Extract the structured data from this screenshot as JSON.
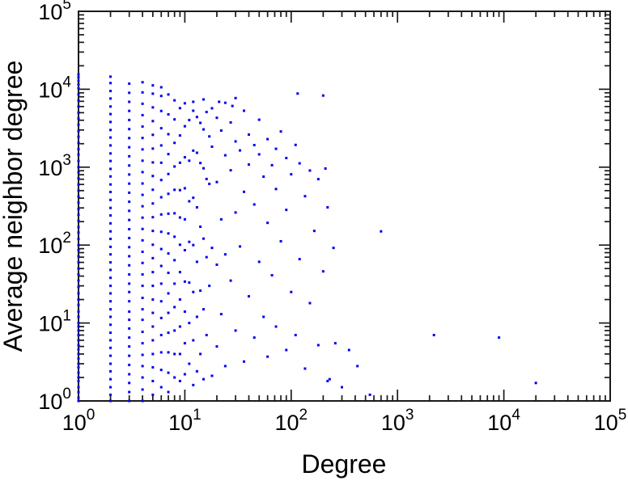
{
  "figure": {
    "background": "#ffffff"
  },
  "chart_data": {
    "type": "scatter",
    "title": "",
    "xlabel": "Degree",
    "ylabel": "Average neighbor degree",
    "x_scale": "log",
    "y_scale": "log",
    "xlim": [
      1,
      100000
    ],
    "ylim": [
      1,
      100000
    ],
    "x_tick_exponents": [
      0,
      1,
      2,
      3,
      4,
      5
    ],
    "y_tick_exponents": [
      0,
      1,
      2,
      3,
      4,
      5
    ],
    "tick_label_base": "10",
    "grid": false,
    "legend": null,
    "marker": "square",
    "marker_size": 3,
    "point_color": "#0000ee",
    "axis_color": "#1a1a1a",
    "points": [
      [
        1,
        1
      ],
      [
        1,
        1.1
      ],
      [
        1,
        1.3
      ],
      [
        1,
        1.5
      ],
      [
        1,
        1.8
      ],
      [
        1,
        2
      ],
      [
        1,
        2.3
      ],
      [
        1,
        2.7
      ],
      [
        1,
        3
      ],
      [
        1,
        3.5
      ],
      [
        1,
        4
      ],
      [
        1,
        4.6
      ],
      [
        1,
        5.2
      ],
      [
        1,
        6
      ],
      [
        1,
        7
      ],
      [
        1,
        8
      ],
      [
        1,
        9
      ],
      [
        1,
        10
      ],
      [
        1,
        12
      ],
      [
        1,
        14
      ],
      [
        1,
        17
      ],
      [
        1,
        20
      ],
      [
        1,
        24
      ],
      [
        1,
        29
      ],
      [
        1,
        35
      ],
      [
        1,
        42
      ],
      [
        1,
        50
      ],
      [
        1,
        60
      ],
      [
        1,
        72
      ],
      [
        1,
        86
      ],
      [
        1,
        100
      ],
      [
        1,
        120
      ],
      [
        1,
        145
      ],
      [
        1,
        170
      ],
      [
        1,
        205
      ],
      [
        1,
        245
      ],
      [
        1,
        290
      ],
      [
        1,
        350
      ],
      [
        1,
        420
      ],
      [
        1,
        500
      ],
      [
        1,
        600
      ],
      [
        1,
        720
      ],
      [
        1,
        860
      ],
      [
        1,
        1000
      ],
      [
        1,
        1200
      ],
      [
        1,
        1450
      ],
      [
        1,
        1700
      ],
      [
        1,
        2050
      ],
      [
        1,
        2450
      ],
      [
        1,
        2900
      ],
      [
        1,
        3500
      ],
      [
        1,
        4200
      ],
      [
        1,
        5000
      ],
      [
        1,
        6000
      ],
      [
        1,
        7200
      ],
      [
        1,
        8600
      ],
      [
        1,
        10300
      ],
      [
        1,
        11500
      ],
      [
        1,
        12800
      ],
      [
        1,
        14200
      ],
      [
        1,
        15500
      ],
      [
        2,
        1
      ],
      [
        2,
        1.2
      ],
      [
        2,
        1.5
      ],
      [
        2,
        1.9
      ],
      [
        2,
        2.4
      ],
      [
        2,
        3
      ],
      [
        2,
        3.8
      ],
      [
        2,
        4.8
      ],
      [
        2,
        6
      ],
      [
        2,
        7.5
      ],
      [
        2,
        9.5
      ],
      [
        2,
        12
      ],
      [
        2,
        15
      ],
      [
        2,
        19
      ],
      [
        2,
        24
      ],
      [
        2,
        30
      ],
      [
        2,
        38
      ],
      [
        2,
        48
      ],
      [
        2,
        60
      ],
      [
        2,
        76
      ],
      [
        2,
        95
      ],
      [
        2,
        120
      ],
      [
        2,
        150
      ],
      [
        2,
        190
      ],
      [
        2,
        240
      ],
      [
        2,
        300
      ],
      [
        2,
        380
      ],
      [
        2,
        480
      ],
      [
        2,
        600
      ],
      [
        2,
        760
      ],
      [
        2,
        950
      ],
      [
        2,
        1200
      ],
      [
        2,
        1500
      ],
      [
        2,
        1900
      ],
      [
        2,
        2400
      ],
      [
        2,
        3000
      ],
      [
        2,
        3800
      ],
      [
        2,
        4800
      ],
      [
        2,
        6000
      ],
      [
        2,
        7600
      ],
      [
        2,
        9500
      ],
      [
        2,
        12000
      ],
      [
        2,
        14500
      ],
      [
        3,
        1
      ],
      [
        3,
        1.3
      ],
      [
        3,
        1.7
      ],
      [
        3,
        2.2
      ],
      [
        3,
        2.9
      ],
      [
        3,
        3.8
      ],
      [
        3,
        5
      ],
      [
        3,
        6.5
      ],
      [
        3,
        8.5
      ],
      [
        3,
        11
      ],
      [
        3,
        14
      ],
      [
        3,
        19
      ],
      [
        3,
        25
      ],
      [
        3,
        32
      ],
      [
        3,
        42
      ],
      [
        3,
        55
      ],
      [
        3,
        72
      ],
      [
        3,
        94
      ],
      [
        3,
        123
      ],
      [
        3,
        160
      ],
      [
        3,
        210
      ],
      [
        3,
        275
      ],
      [
        3,
        360
      ],
      [
        3,
        470
      ],
      [
        3,
        615
      ],
      [
        3,
        805
      ],
      [
        3,
        1050
      ],
      [
        3,
        1380
      ],
      [
        3,
        1800
      ],
      [
        3,
        2360
      ],
      [
        3,
        3080
      ],
      [
        3,
        4030
      ],
      [
        3,
        5270
      ],
      [
        3,
        6890
      ],
      [
        3,
        9000
      ],
      [
        3,
        11800
      ],
      [
        4,
        1
      ],
      [
        4,
        1.4
      ],
      [
        4,
        2
      ],
      [
        4,
        2.8
      ],
      [
        4,
        3.9
      ],
      [
        4,
        5.5
      ],
      [
        4,
        7.7
      ],
      [
        4,
        11
      ],
      [
        4,
        15
      ],
      [
        4,
        21
      ],
      [
        4,
        30
      ],
      [
        4,
        42
      ],
      [
        4,
        59
      ],
      [
        4,
        82
      ],
      [
        4,
        115
      ],
      [
        4,
        161
      ],
      [
        4,
        225
      ],
      [
        4,
        315
      ],
      [
        4,
        441
      ],
      [
        4,
        617
      ],
      [
        4,
        864
      ],
      [
        4,
        1210
      ],
      [
        4,
        1690
      ],
      [
        4,
        2370
      ],
      [
        4,
        3320
      ],
      [
        4,
        4650
      ],
      [
        4,
        6510
      ],
      [
        4,
        9110
      ],
      [
        4,
        12300
      ],
      [
        5,
        1.2
      ],
      [
        5,
        1.8
      ],
      [
        5,
        2.7
      ],
      [
        5,
        4
      ],
      [
        5,
        6
      ],
      [
        5,
        9
      ],
      [
        5,
        13.5
      ],
      [
        5,
        20
      ],
      [
        5,
        30
      ],
      [
        5,
        45
      ],
      [
        5,
        68
      ],
      [
        5,
        101
      ],
      [
        5,
        152
      ],
      [
        5,
        228
      ],
      [
        5,
        342
      ],
      [
        5,
        513
      ],
      [
        5,
        770
      ],
      [
        5,
        1150
      ],
      [
        5,
        1730
      ],
      [
        5,
        2600
      ],
      [
        5,
        3900
      ],
      [
        5,
        5850
      ],
      [
        5,
        8770
      ],
      [
        5,
        11200
      ],
      [
        6,
        1.5
      ],
      [
        6,
        2.5
      ],
      [
        6,
        4.2
      ],
      [
        6,
        7
      ],
      [
        6,
        11.6
      ],
      [
        6,
        19
      ],
      [
        6,
        32
      ],
      [
        6,
        54
      ],
      [
        6,
        89
      ],
      [
        6,
        148
      ],
      [
        6,
        247
      ],
      [
        6,
        411
      ],
      [
        6,
        684
      ],
      [
        6,
        1140
      ],
      [
        6,
        1900
      ],
      [
        6,
        3160
      ],
      [
        6,
        5260
      ],
      [
        6,
        8200
      ],
      [
        6,
        10600
      ],
      [
        7,
        1.3
      ],
      [
        7,
        2.3
      ],
      [
        7,
        4.2
      ],
      [
        7,
        7.5
      ],
      [
        7,
        13.5
      ],
      [
        7,
        24
      ],
      [
        7,
        44
      ],
      [
        7,
        78
      ],
      [
        7,
        141
      ],
      [
        7,
        253
      ],
      [
        7,
        455
      ],
      [
        7,
        818
      ],
      [
        7,
        1470
      ],
      [
        7,
        2650
      ],
      [
        7,
        4760
      ],
      [
        7,
        8570
      ],
      [
        8,
        2
      ],
      [
        8,
        4
      ],
      [
        8,
        8
      ],
      [
        8,
        16
      ],
      [
        8,
        32
      ],
      [
        8,
        64
      ],
      [
        8,
        128
      ],
      [
        8,
        256
      ],
      [
        8,
        512
      ],
      [
        8,
        1020
      ],
      [
        8,
        2050
      ],
      [
        8,
        4100
      ],
      [
        8,
        7200
      ],
      [
        9,
        1.8
      ],
      [
        9,
        4
      ],
      [
        9,
        9
      ],
      [
        9,
        20
      ],
      [
        9,
        45
      ],
      [
        9,
        101
      ],
      [
        9,
        226
      ],
      [
        9,
        507
      ],
      [
        9,
        1140
      ],
      [
        9,
        2550
      ],
      [
        9,
        5720
      ],
      [
        10,
        2.2
      ],
      [
        10,
        5.5
      ],
      [
        10,
        14
      ],
      [
        10,
        34
      ],
      [
        10,
        86
      ],
      [
        10,
        214
      ],
      [
        10,
        536
      ],
      [
        10,
        1340
      ],
      [
        10,
        3350
      ],
      [
        10,
        6600
      ],
      [
        11,
        3
      ],
      [
        11,
        10
      ],
      [
        11,
        33
      ],
      [
        11,
        110
      ],
      [
        11,
        365
      ],
      [
        11,
        1210
      ],
      [
        11,
        4020
      ],
      [
        12,
        1.6
      ],
      [
        12,
        6
      ],
      [
        12,
        25
      ],
      [
        12,
        100
      ],
      [
        12,
        405
      ],
      [
        12,
        1630
      ],
      [
        12,
        5300
      ],
      [
        12,
        6900
      ],
      [
        13,
        2.4
      ],
      [
        13,
        12
      ],
      [
        13,
        61
      ],
      [
        13,
        305
      ],
      [
        13,
        1530
      ],
      [
        13,
        4400
      ],
      [
        14,
        4
      ],
      [
        14,
        26
      ],
      [
        14,
        172
      ],
      [
        14,
        1130
      ],
      [
        14,
        3700
      ],
      [
        15,
        1.9
      ],
      [
        15,
        15
      ],
      [
        15,
        121
      ],
      [
        15,
        966
      ],
      [
        15,
        3050
      ],
      [
        15,
        7400
      ],
      [
        16,
        7
      ],
      [
        16,
        70
      ],
      [
        16,
        705
      ],
      [
        16,
        5100
      ],
      [
        17,
        30
      ],
      [
        17,
        610
      ],
      [
        17,
        2480
      ],
      [
        18,
        2.1
      ],
      [
        18,
        92
      ],
      [
        18,
        1830
      ],
      [
        18,
        5700
      ],
      [
        20,
        5
      ],
      [
        20,
        56
      ],
      [
        20,
        644
      ],
      [
        20,
        4300
      ],
      [
        21,
        6900
      ],
      [
        22,
        13
      ],
      [
        22,
        214
      ],
      [
        22,
        2950
      ],
      [
        24,
        2.8
      ],
      [
        24,
        76
      ],
      [
        24,
        1420
      ],
      [
        24,
        6700
      ],
      [
        27,
        35
      ],
      [
        27,
        912
      ],
      [
        27,
        3750
      ],
      [
        28,
        6100
      ],
      [
        30,
        8
      ],
      [
        30,
        262
      ],
      [
        30,
        2140
      ],
      [
        30,
        7700
      ],
      [
        33,
        96
      ],
      [
        33,
        1640
      ],
      [
        36,
        3.2
      ],
      [
        36,
        483
      ],
      [
        36,
        5300
      ],
      [
        40,
        22
      ],
      [
        40,
        1080
      ],
      [
        40,
        2620
      ],
      [
        45,
        6.5
      ],
      [
        45,
        332
      ],
      [
        45,
        1920
      ],
      [
        50,
        61
      ],
      [
        50,
        1460
      ],
      [
        50,
        4060
      ],
      [
        55,
        12
      ],
      [
        55,
        755
      ],
      [
        60,
        3.7
      ],
      [
        60,
        193
      ],
      [
        60,
        2290
      ],
      [
        66,
        41
      ],
      [
        66,
        1060
      ],
      [
        72,
        9
      ],
      [
        72,
        524
      ],
      [
        72,
        1720
      ],
      [
        80,
        112
      ],
      [
        80,
        2870
      ],
      [
        90,
        4.5
      ],
      [
        90,
        283
      ],
      [
        90,
        1310
      ],
      [
        100,
        25
      ],
      [
        100,
        810
      ],
      [
        110,
        7
      ],
      [
        110,
        1930
      ],
      [
        115,
        8800
      ],
      [
        120,
        66
      ],
      [
        120,
        1120
      ],
      [
        135,
        2.6
      ],
      [
        135,
        424
      ],
      [
        150,
        18
      ],
      [
        150,
        905
      ],
      [
        165,
        152
      ],
      [
        180,
        5.2
      ],
      [
        180,
        702
      ],
      [
        200,
        46
      ],
      [
        200,
        8300
      ],
      [
        210,
        960
      ],
      [
        220,
        1.8
      ],
      [
        220,
        305
      ],
      [
        230,
        1.9
      ],
      [
        250,
        92
      ],
      [
        260,
        5.5
      ],
      [
        300,
        1.5
      ],
      [
        350,
        4.5
      ],
      [
        420,
        2.8
      ],
      [
        550,
        1.2
      ],
      [
        700,
        150
      ],
      [
        2200,
        7
      ],
      [
        9000,
        6.5
      ],
      [
        20000,
        1.7
      ]
    ]
  }
}
